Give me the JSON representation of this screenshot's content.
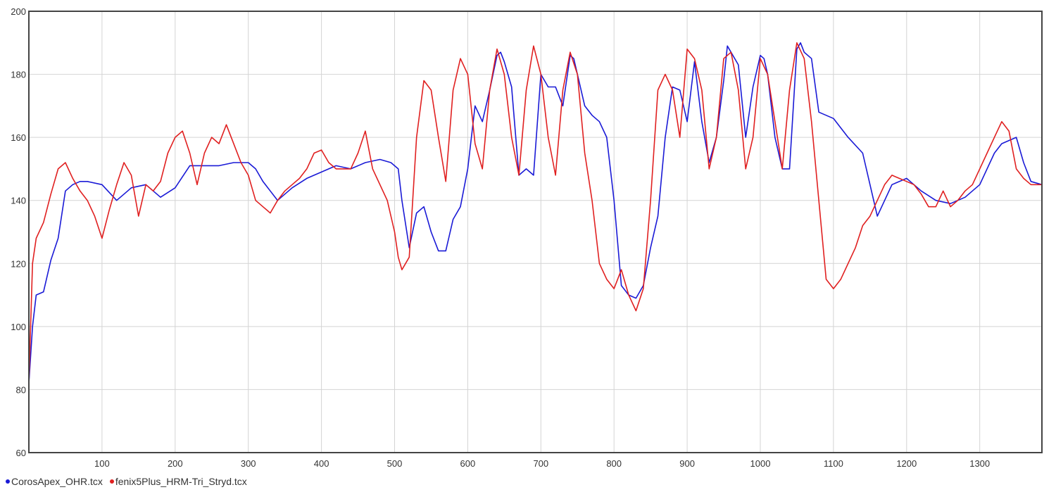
{
  "chart_data": {
    "type": "line",
    "title": "",
    "xlabel": "",
    "ylabel": "",
    "xlim": [
      0,
      1385
    ],
    "ylim": [
      60,
      200
    ],
    "x_ticks": [
      100,
      200,
      300,
      400,
      500,
      600,
      700,
      800,
      900,
      1000,
      1100,
      1200,
      1300
    ],
    "y_ticks": [
      60,
      80,
      100,
      120,
      140,
      160,
      180,
      200
    ],
    "grid": true,
    "legend_position": "bottom-left",
    "series": [
      {
        "name": "CorosApex_OHR.tcx",
        "color": "#1a1ad6",
        "x": [
          0,
          5,
          10,
          20,
          30,
          40,
          50,
          60,
          70,
          80,
          100,
          120,
          130,
          140,
          160,
          180,
          200,
          220,
          240,
          260,
          280,
          300,
          310,
          320,
          340,
          360,
          380,
          400,
          420,
          440,
          460,
          480,
          495,
          505,
          510,
          520,
          530,
          540,
          550,
          560,
          570,
          580,
          590,
          600,
          610,
          620,
          630,
          640,
          645,
          650,
          660,
          670,
          680,
          690,
          700,
          710,
          720,
          730,
          740,
          745,
          750,
          760,
          770,
          780,
          790,
          800,
          810,
          820,
          830,
          840,
          850,
          860,
          870,
          880,
          890,
          900,
          910,
          920,
          930,
          940,
          950,
          955,
          960,
          970,
          980,
          990,
          1000,
          1005,
          1010,
          1020,
          1030,
          1040,
          1050,
          1055,
          1060,
          1070,
          1080,
          1100,
          1120,
          1140,
          1150,
          1160,
          1170,
          1180,
          1200,
          1220,
          1240,
          1260,
          1280,
          1300,
          1320,
          1330,
          1340,
          1350,
          1360,
          1370,
          1385
        ],
        "values": [
          82,
          100,
          110,
          111,
          121,
          128,
          143,
          145,
          146,
          146,
          145,
          140,
          142,
          144,
          145,
          141,
          144,
          151,
          151,
          151,
          152,
          152,
          150,
          146,
          140,
          144,
          147,
          149,
          151,
          150,
          152,
          153,
          152,
          150,
          140,
          125,
          136,
          138,
          130,
          124,
          124,
          134,
          138,
          150,
          170,
          165,
          175,
          186,
          187,
          184,
          176,
          148,
          150,
          148,
          180,
          176,
          176,
          170,
          186,
          185,
          180,
          170,
          167,
          165,
          160,
          140,
          113,
          110,
          109,
          113,
          125,
          135,
          160,
          176,
          175,
          165,
          184,
          165,
          152,
          160,
          178,
          189,
          187,
          183,
          160,
          176,
          186,
          185,
          180,
          160,
          150,
          150,
          188,
          190,
          187,
          185,
          168,
          166,
          160,
          155,
          145,
          135,
          140,
          145,
          147,
          143,
          140,
          139,
          141,
          145,
          155,
          158,
          159,
          160,
          152,
          146,
          145
        ]
      },
      {
        "name": "fenix5Plus_HRM-Tri_Stryd.tcx",
        "color": "#e02020",
        "x": [
          0,
          5,
          10,
          20,
          30,
          40,
          50,
          60,
          70,
          80,
          90,
          100,
          110,
          120,
          130,
          140,
          150,
          160,
          170,
          180,
          190,
          200,
          210,
          220,
          230,
          240,
          250,
          260,
          270,
          280,
          290,
          300,
          310,
          320,
          330,
          340,
          350,
          360,
          370,
          380,
          390,
          400,
          410,
          420,
          430,
          440,
          450,
          460,
          470,
          480,
          490,
          500,
          505,
          510,
          515,
          520,
          530,
          540,
          550,
          560,
          570,
          580,
          590,
          600,
          610,
          620,
          630,
          640,
          650,
          660,
          670,
          680,
          690,
          700,
          710,
          720,
          730,
          740,
          750,
          760,
          770,
          780,
          790,
          800,
          810,
          820,
          830,
          840,
          850,
          860,
          870,
          880,
          890,
          900,
          910,
          920,
          930,
          940,
          950,
          960,
          970,
          980,
          990,
          1000,
          1010,
          1020,
          1030,
          1040,
          1050,
          1060,
          1070,
          1080,
          1090,
          1100,
          1110,
          1120,
          1130,
          1140,
          1150,
          1160,
          1170,
          1180,
          1190,
          1200,
          1210,
          1220,
          1230,
          1240,
          1250,
          1260,
          1270,
          1280,
          1290,
          1300,
          1310,
          1320,
          1330,
          1340,
          1350,
          1360,
          1370,
          1385
        ],
        "values": [
          82,
          120,
          128,
          133,
          142,
          150,
          152,
          147,
          143,
          140,
          135,
          128,
          137,
          145,
          152,
          148,
          135,
          145,
          143,
          146,
          155,
          160,
          162,
          155,
          145,
          155,
          160,
          158,
          164,
          158,
          152,
          148,
          140,
          138,
          136,
          140,
          143,
          145,
          147,
          150,
          155,
          156,
          152,
          150,
          150,
          150,
          155,
          162,
          150,
          145,
          140,
          130,
          122,
          118,
          120,
          122,
          160,
          178,
          175,
          160,
          146,
          175,
          185,
          180,
          158,
          150,
          175,
          188,
          180,
          160,
          148,
          175,
          189,
          180,
          160,
          148,
          175,
          187,
          180,
          155,
          140,
          120,
          115,
          112,
          118,
          110,
          105,
          112,
          140,
          175,
          180,
          175,
          160,
          188,
          185,
          175,
          150,
          160,
          185,
          187,
          175,
          150,
          160,
          185,
          180,
          165,
          150,
          175,
          190,
          185,
          165,
          140,
          115,
          112,
          115,
          120,
          125,
          132,
          135,
          140,
          145,
          148,
          147,
          146,
          145,
          142,
          138,
          138,
          143,
          138,
          140,
          143,
          145,
          150,
          155,
          160,
          165,
          162,
          150,
          147,
          145,
          145
        ]
      }
    ]
  }
}
